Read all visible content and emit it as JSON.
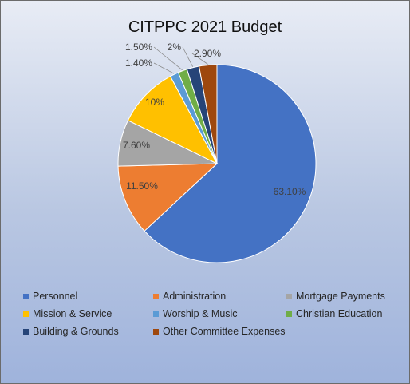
{
  "chart_data": {
    "type": "pie",
    "title": "CITPPC 2021 Budget",
    "slices": [
      {
        "name": "Personnel",
        "value": 63.1,
        "label": "63.10%",
        "color": "#4472C4"
      },
      {
        "name": "Administration",
        "value": 11.5,
        "label": "11.50%",
        "color": "#ED7D31"
      },
      {
        "name": "Mortgage Payments",
        "value": 7.6,
        "label": "7.60%",
        "color": "#A5A5A5"
      },
      {
        "name": "Mission & Service",
        "value": 10,
        "label": "10%",
        "color": "#FFC000"
      },
      {
        "name": "Worship & Music",
        "value": 1.4,
        "label": "1.40%",
        "color": "#5B9BD5"
      },
      {
        "name": "Christian Education",
        "value": 1.5,
        "label": "1.50%",
        "color": "#70AD47"
      },
      {
        "name": "Building & Grounds",
        "value": 2,
        "label": "2%",
        "color": "#264478"
      },
      {
        "name": "Other Committee Expenses",
        "value": 2.9,
        "label": "2.90%",
        "color": "#9E480E"
      }
    ],
    "legend_position": "bottom"
  }
}
